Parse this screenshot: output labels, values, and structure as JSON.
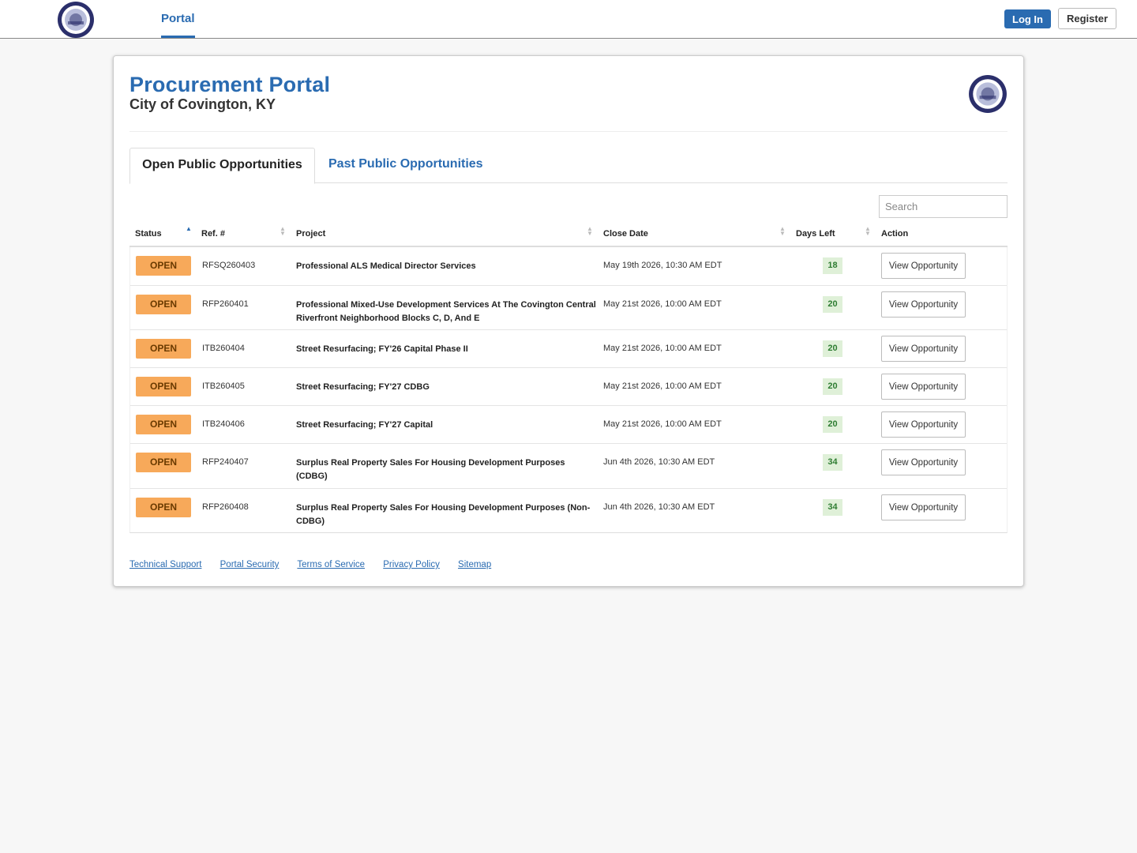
{
  "nav": {
    "portal_label": "Portal",
    "login_label": "Log In",
    "register_label": "Register"
  },
  "header": {
    "title": "Procurement Portal",
    "subtitle": "City of Covington, KY"
  },
  "tabs": {
    "open_label": "Open Public Opportunities",
    "past_label": "Past Public Opportunities"
  },
  "search": {
    "placeholder": "Search"
  },
  "table": {
    "columns": {
      "status": "Status",
      "ref": "Ref. #",
      "project": "Project",
      "close_date": "Close Date",
      "days_left": "Days Left",
      "action": "Action"
    },
    "rows": [
      {
        "status": "OPEN",
        "ref": "RFSQ260403",
        "project": "Professional ALS Medical Director Services",
        "close_date": "May 19th 2026, 10:30 AM EDT",
        "days_left": "18",
        "action": "View Opportunity"
      },
      {
        "status": "OPEN",
        "ref": "RFP260401",
        "project": "Professional Mixed-Use Development Services At The Covington Central Riverfront Neighborhood Blocks C, D, And E",
        "close_date": "May 21st 2026, 10:00 AM EDT",
        "days_left": "20",
        "action": "View Opportunity"
      },
      {
        "status": "OPEN",
        "ref": "ITB260404",
        "project": "Street Resurfacing; FY'26 Capital Phase II",
        "close_date": "May 21st 2026, 10:00 AM EDT",
        "days_left": "20",
        "action": "View Opportunity"
      },
      {
        "status": "OPEN",
        "ref": "ITB260405",
        "project": "Street Resurfacing; FY'27 CDBG",
        "close_date": "May 21st 2026, 10:00 AM EDT",
        "days_left": "20",
        "action": "View Opportunity"
      },
      {
        "status": "OPEN",
        "ref": "ITB240406",
        "project": "Street Resurfacing; FY'27 Capital",
        "close_date": "May 21st 2026, 10:00 AM EDT",
        "days_left": "20",
        "action": "View Opportunity"
      },
      {
        "status": "OPEN",
        "ref": "RFP240407",
        "project": "Surplus Real Property Sales For Housing Development Purposes (CDBG)",
        "close_date": "Jun 4th 2026, 10:30 AM EDT",
        "days_left": "34",
        "action": "View Opportunity"
      },
      {
        "status": "OPEN",
        "ref": "RFP260408",
        "project": "Surplus Real Property Sales For Housing Development Purposes (Non-CDBG)",
        "close_date": "Jun 4th 2026, 10:30 AM EDT",
        "days_left": "34",
        "action": "View Opportunity"
      }
    ]
  },
  "footer": {
    "links": [
      "Technical Support",
      "Portal Security",
      "Terms of Service",
      "Privacy Policy",
      "Sitemap"
    ]
  },
  "colors": {
    "brand_blue": "#2a6bb1",
    "open_badge": "#f7a95a",
    "days_badge_bg": "#dff0d8",
    "days_badge_text": "#2e7d32",
    "seal_navy": "#2b2f6b"
  },
  "icons": {
    "logo": "city-seal-icon",
    "sort": "sort-arrows-icon"
  }
}
